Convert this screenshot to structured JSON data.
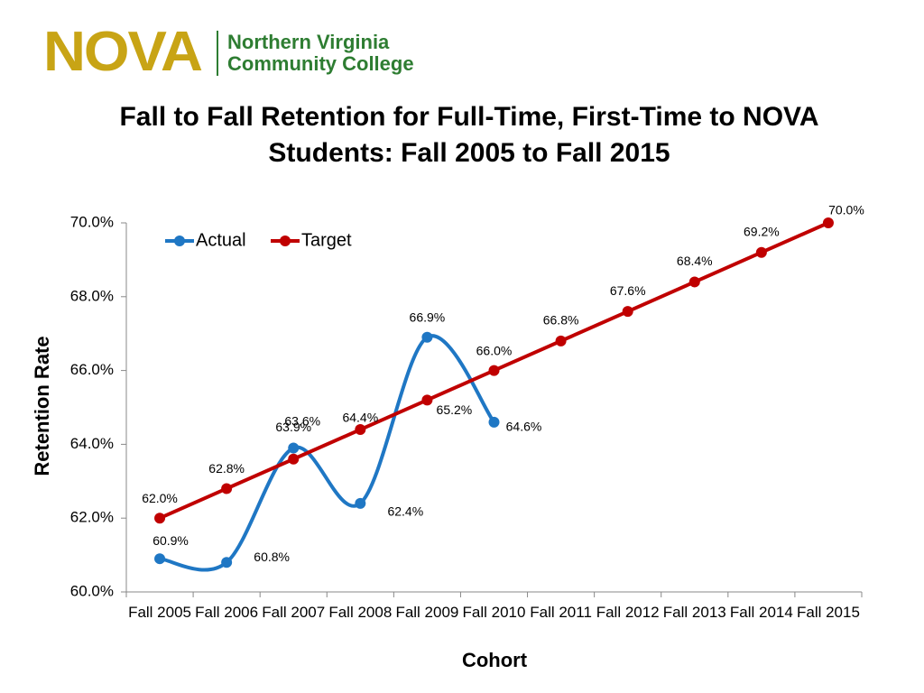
{
  "header": {
    "logo": "NOVA",
    "college_line1": "Northern Virginia",
    "college_line2": "Community College"
  },
  "chart_data": {
    "type": "line",
    "title": "Fall to Fall Retention for Full-Time, First-Time to NOVA Students: Fall 2005 to Fall 2015",
    "xlabel": "Cohort",
    "ylabel": "Retention Rate",
    "categories": [
      "Fall 2005",
      "Fall 2006",
      "Fall 2007",
      "Fall 2008",
      "Fall 2009",
      "Fall 2010",
      "Fall 2011",
      "Fall 2012",
      "Fall 2013",
      "Fall 2014",
      "Fall 2015"
    ],
    "series": [
      {
        "name": "Actual",
        "color": "#1f77c4",
        "smooth": true,
        "values": [
          60.9,
          60.8,
          63.9,
          62.4,
          66.9,
          64.6,
          null,
          null,
          null,
          null,
          null
        ],
        "value_labels": [
          "60.9%",
          "60.8%",
          "63.9%",
          "62.4%",
          "66.9%",
          "64.6%",
          null,
          null,
          null,
          null,
          null
        ]
      },
      {
        "name": "Target",
        "color": "#c00000",
        "smooth": false,
        "values": [
          62.0,
          62.8,
          63.6,
          64.4,
          65.2,
          66.0,
          66.8,
          67.6,
          68.4,
          69.2,
          70.0
        ],
        "value_labels": [
          "62.0%",
          "62.8%",
          "63.6%",
          "64.4%",
          "65.2%",
          "66.0%",
          "66.8%",
          "67.6%",
          "68.4%",
          "69.2%",
          "70.0%"
        ]
      }
    ],
    "ylim": [
      60,
      70
    ],
    "yticks": [
      {
        "value": 60,
        "label": "60.0%"
      },
      {
        "value": 62,
        "label": "62.0%"
      },
      {
        "value": 64,
        "label": "64.0%"
      },
      {
        "value": 66,
        "label": "66.0%"
      },
      {
        "value": 68,
        "label": "68.0%"
      },
      {
        "value": 70,
        "label": "70.0%"
      }
    ],
    "legend": "top-left",
    "grid": false
  }
}
